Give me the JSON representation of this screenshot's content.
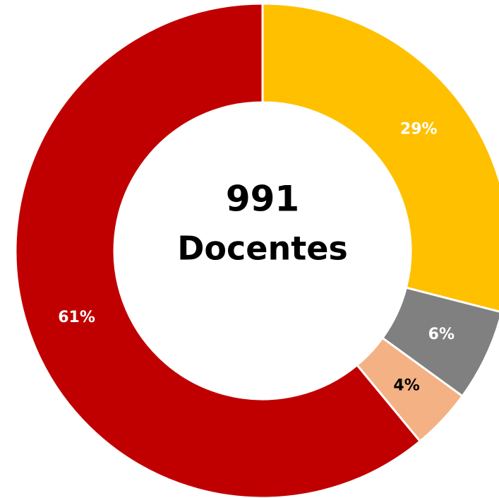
{
  "chart_data": {
    "type": "donut",
    "values": [
      29,
      6,
      4,
      61
    ],
    "value_labels": [
      "29%",
      "6%",
      "4%",
      "61%"
    ],
    "colors": [
      "#ffc000",
      "#808080",
      "#f4b183",
      "#c00000"
    ],
    "label_colors": [
      "#ffffff",
      "#ffffff",
      "#000000",
      "#ffffff"
    ],
    "center_value": 991,
    "center_label": "Docentes"
  }
}
